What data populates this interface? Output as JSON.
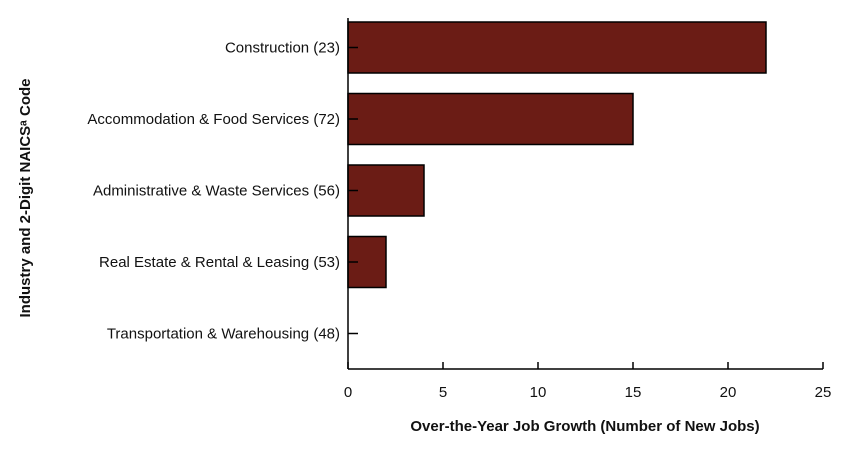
{
  "chart_data": {
    "type": "bar",
    "orientation": "horizontal",
    "categories": [
      "Construction (23)",
      "Accommodation & Food Services (72)",
      "Administrative & Waste Services (56)",
      "Real Estate & Rental & Leasing (53)",
      "Transportation & Warehousing (48)"
    ],
    "values": [
      22,
      15,
      4,
      2,
      0
    ],
    "xlabel": "Over-the-Year Job Growth (Number of New Jobs)",
    "ylabel": "Industry and 2-Digit NAICSᵃ Code",
    "xlim": [
      0,
      25
    ],
    "xticks": [
      "0",
      "5",
      "10",
      "15",
      "20",
      "25"
    ],
    "grid": false,
    "bar_color": "#6b1c15",
    "bar_edge_color": "#000000"
  }
}
